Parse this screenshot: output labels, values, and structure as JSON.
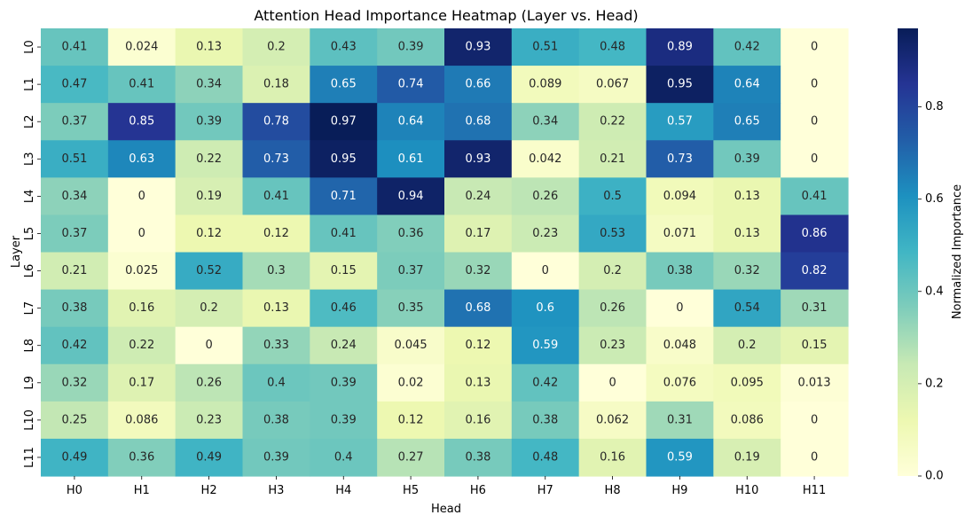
{
  "chart_data": {
    "type": "heatmap",
    "title": "Attention Head Importance Heatmap (Layer vs. Head)",
    "xlabel": "Head",
    "ylabel": "Layer",
    "x_categories": [
      "H0",
      "H1",
      "H2",
      "H3",
      "H4",
      "H5",
      "H6",
      "H7",
      "H8",
      "H9",
      "H10",
      "H11"
    ],
    "y_categories": [
      "L0",
      "L1",
      "L2",
      "L3",
      "L4",
      "L5",
      "L6",
      "L7",
      "L8",
      "L9",
      "L10",
      "L11"
    ],
    "values": [
      [
        0.41,
        0.024,
        0.13,
        0.2,
        0.43,
        0.39,
        0.93,
        0.51,
        0.48,
        0.89,
        0.42,
        0
      ],
      [
        0.47,
        0.41,
        0.34,
        0.18,
        0.65,
        0.74,
        0.66,
        0.089,
        0.067,
        0.95,
        0.64,
        0
      ],
      [
        0.37,
        0.85,
        0.39,
        0.78,
        0.97,
        0.64,
        0.68,
        0.34,
        0.22,
        0.57,
        0.65,
        0
      ],
      [
        0.51,
        0.63,
        0.22,
        0.73,
        0.95,
        0.61,
        0.93,
        0.042,
        0.21,
        0.73,
        0.39,
        0
      ],
      [
        0.34,
        0,
        0.19,
        0.41,
        0.71,
        0.94,
        0.24,
        0.26,
        0.5,
        0.094,
        0.13,
        0.41
      ],
      [
        0.37,
        0,
        0.12,
        0.12,
        0.41,
        0.36,
        0.17,
        0.23,
        0.53,
        0.071,
        0.13,
        0.86
      ],
      [
        0.21,
        0.025,
        0.52,
        0.3,
        0.15,
        0.37,
        0.32,
        0,
        0.2,
        0.38,
        0.32,
        0.82
      ],
      [
        0.38,
        0.16,
        0.2,
        0.13,
        0.46,
        0.35,
        0.68,
        0.6,
        0.26,
        0,
        0.54,
        0.31
      ],
      [
        0.42,
        0.22,
        0,
        0.33,
        0.24,
        0.045,
        0.12,
        0.59,
        0.23,
        0.048,
        0.2,
        0.15
      ],
      [
        0.32,
        0.17,
        0.26,
        0.4,
        0.39,
        0.02,
        0.13,
        0.42,
        0,
        0.076,
        0.095,
        0.013
      ],
      [
        0.25,
        0.086,
        0.23,
        0.38,
        0.39,
        0.12,
        0.16,
        0.38,
        0.062,
        0.31,
        0.086,
        0
      ],
      [
        0.49,
        0.36,
        0.49,
        0.39,
        0.4,
        0.27,
        0.38,
        0.48,
        0.16,
        0.59,
        0.19,
        0
      ]
    ],
    "colormap": "YlGnBu",
    "vmin": 0,
    "vmax": 0.97,
    "annotated": true,
    "colorbar": {
      "label": "Normalized Importance",
      "ticks": [
        0.0,
        0.2,
        0.4,
        0.6,
        0.8
      ],
      "tick_labels": [
        "0.0",
        "0.2",
        "0.4",
        "0.6",
        "0.8"
      ],
      "placement": "right"
    }
  }
}
